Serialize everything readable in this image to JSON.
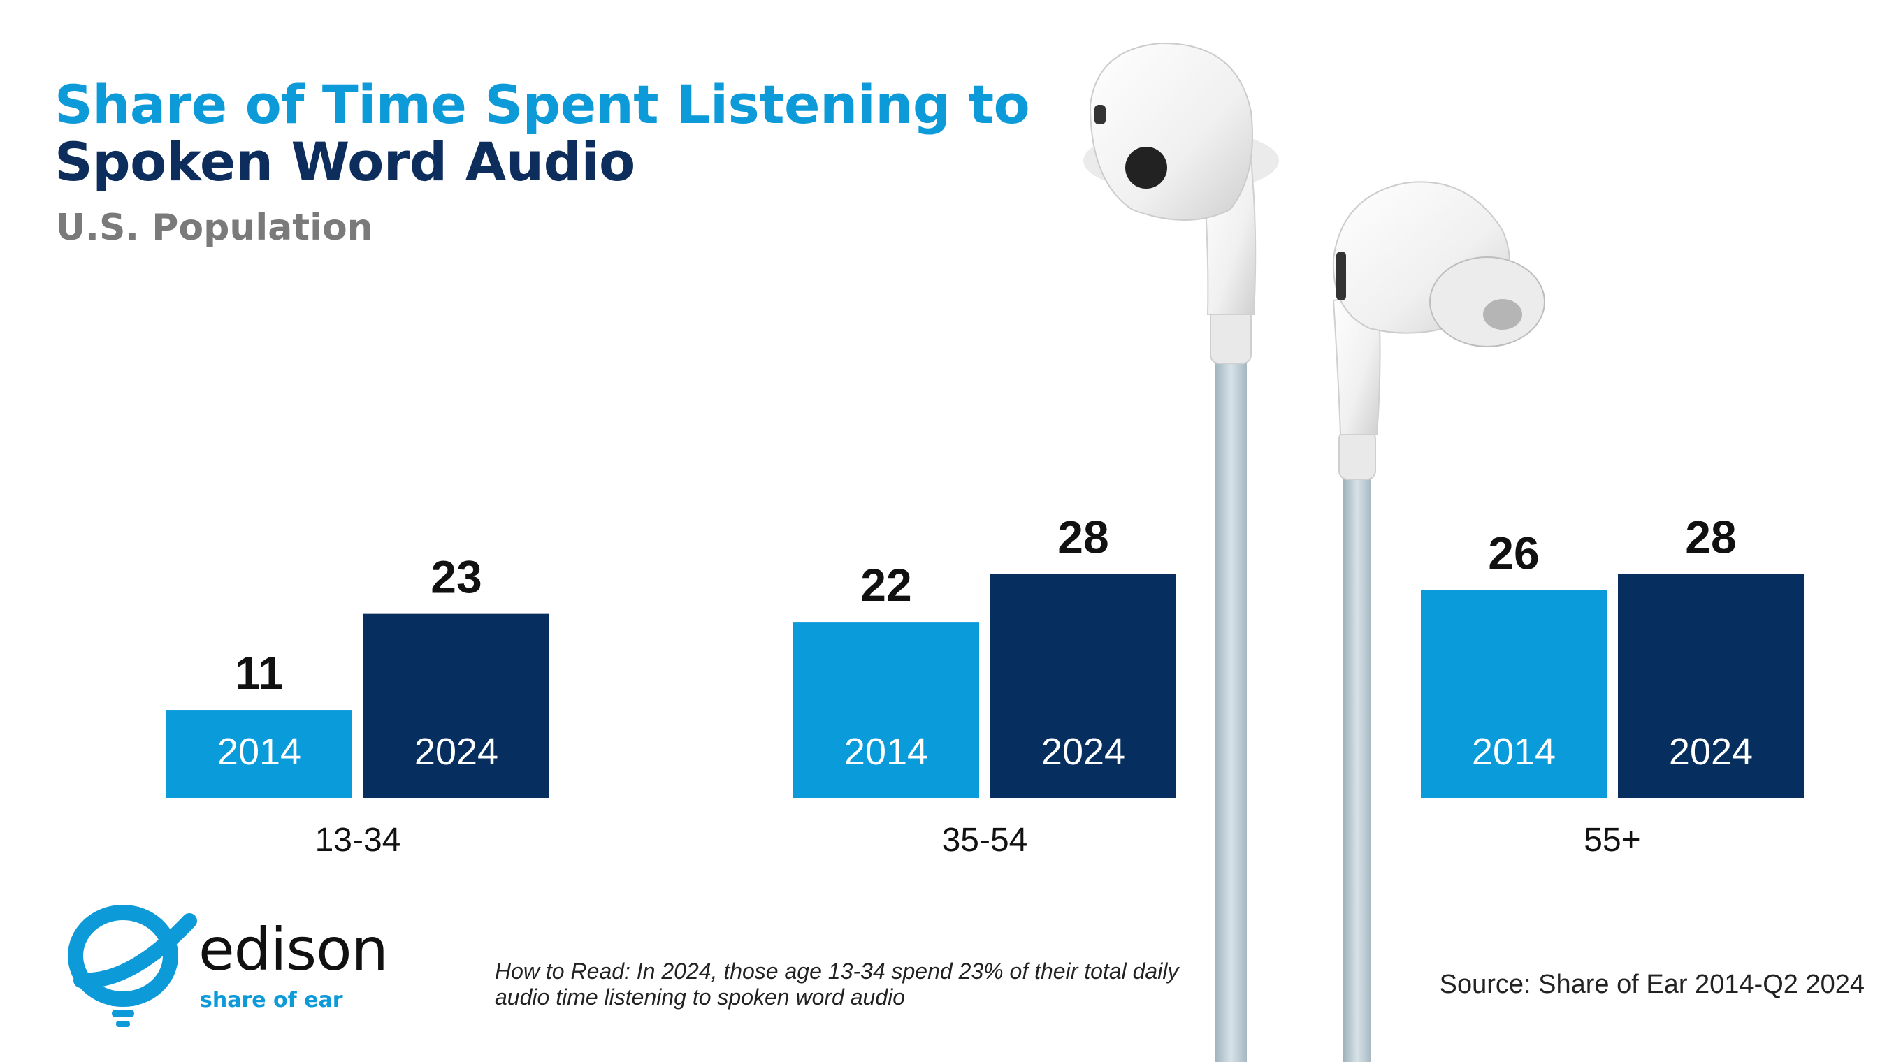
{
  "header": {
    "title_line_1": "Share of Time Spent Listening to",
    "title_line_2": "Spoken Word Audio",
    "subtitle": "U.S. Population"
  },
  "chart_data": {
    "type": "bar",
    "title": "Share of Time Spent Listening to Spoken Word Audio",
    "subtitle": "U.S. Population",
    "categories": [
      "13-34",
      "35-54",
      "55+"
    ],
    "series": [
      {
        "name": "2014",
        "values": [
          11,
          22,
          26
        ],
        "color": "#0a9bdb"
      },
      {
        "name": "2024",
        "values": [
          23,
          28,
          28
        ],
        "color": "#062f5f"
      }
    ],
    "xlabel": "",
    "ylabel": "",
    "ylim": [
      0,
      45
    ],
    "grid": false,
    "legend": "inside-bars"
  },
  "logo": {
    "wordmark": "edison",
    "tagline": "share of ear",
    "accent_color": "#0d9ad8"
  },
  "footer": {
    "how_to_read": "How to Read: In 2024, those age 13-34 spend 23% of their total daily audio time listening to spoken word audio",
    "source": "Source: Share of Ear 2014-Q2 2024"
  },
  "decor": {
    "image_subject": "earbuds-image"
  }
}
